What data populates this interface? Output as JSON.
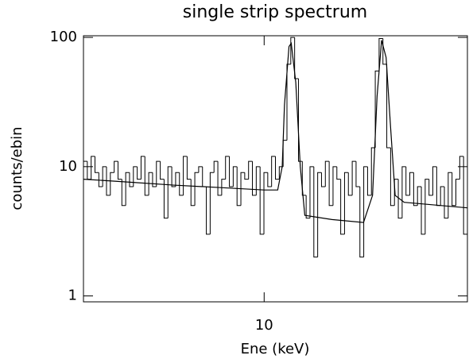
{
  "chart_data": {
    "type": "histogram",
    "title": "single strip spectrum",
    "xlabel": "Ene (keV)",
    "ylabel": "counts/ebin",
    "xlim": [
      6,
      14.5
    ],
    "xticks": [
      10
    ],
    "ylim": [
      0.9,
      103
    ],
    "yticks": [
      1,
      10,
      100
    ],
    "ylog": true,
    "color": "#000000",
    "bins": [
      6,
      6.085,
      6.17,
      6.255,
      6.34,
      6.425,
      6.51,
      6.595,
      6.68,
      6.765,
      6.85,
      6.935,
      7.02,
      7.105,
      7.19,
      7.275,
      7.36,
      7.445,
      7.53,
      7.615,
      7.7,
      7.785,
      7.87,
      7.955,
      8.04,
      8.125,
      8.21,
      8.295,
      8.38,
      8.465,
      8.55,
      8.635,
      8.72,
      8.805,
      8.89,
      8.975,
      9.06,
      9.145,
      9.23,
      9.315,
      9.4,
      9.485,
      9.57,
      9.655,
      9.74,
      9.825,
      9.91,
      9.995,
      10.08,
      10.165,
      10.25,
      10.335,
      10.42,
      10.505,
      10.59,
      10.675,
      10.76,
      10.845,
      10.93,
      11.015,
      11.1,
      11.185,
      11.27,
      11.355,
      11.44,
      11.525,
      11.61,
      11.695,
      11.78,
      11.865,
      11.95,
      12.035,
      12.12,
      12.205,
      12.29,
      12.375,
      12.46,
      12.545,
      12.63,
      12.715,
      12.8,
      12.885,
      12.97,
      13.055,
      13.14,
      13.225,
      13.31,
      13.395,
      13.48,
      13.565,
      13.65,
      13.735,
      13.82,
      13.905,
      13.99,
      14.075,
      14.16,
      14.245,
      14.33,
      14.415,
      14.5
    ],
    "values": [
      11,
      8,
      12,
      9,
      7,
      10,
      6,
      9,
      11,
      8,
      5,
      9,
      7,
      10,
      8,
      12,
      6,
      9,
      7,
      11,
      8,
      4,
      10,
      7,
      9,
      6,
      12,
      8,
      5,
      9,
      10,
      7,
      3,
      9,
      11,
      6,
      8,
      12,
      7,
      10,
      5,
      9,
      8,
      11,
      6,
      10,
      3,
      9,
      7,
      12,
      8,
      10,
      16,
      62,
      100,
      48,
      11,
      6,
      4,
      10,
      2,
      9,
      7,
      11,
      5,
      10,
      8,
      3,
      9,
      6,
      11,
      7,
      2,
      10,
      6,
      14,
      55,
      98,
      62,
      14,
      5,
      8,
      4,
      10,
      6,
      9,
      5,
      7,
      3,
      8,
      6,
      10,
      5,
      7,
      4,
      9,
      5,
      8,
      12,
      3
    ],
    "fit": {
      "x": [
        6,
        7,
        8,
        9,
        10,
        10.3,
        10.4,
        10.45,
        10.55,
        10.6,
        10.7,
        10.8,
        10.9,
        11.5,
        12.2,
        12.4,
        12.5,
        12.6,
        12.7,
        12.8,
        12.9,
        13.1,
        14.5
      ],
      "y": [
        8,
        7.6,
        7.2,
        6.9,
        6.6,
        6.6,
        10,
        30,
        85,
        90,
        45,
        10,
        4.2,
        3.9,
        3.7,
        6,
        35,
        95,
        70,
        20,
        6,
        5.3,
        4.8
      ]
    }
  }
}
